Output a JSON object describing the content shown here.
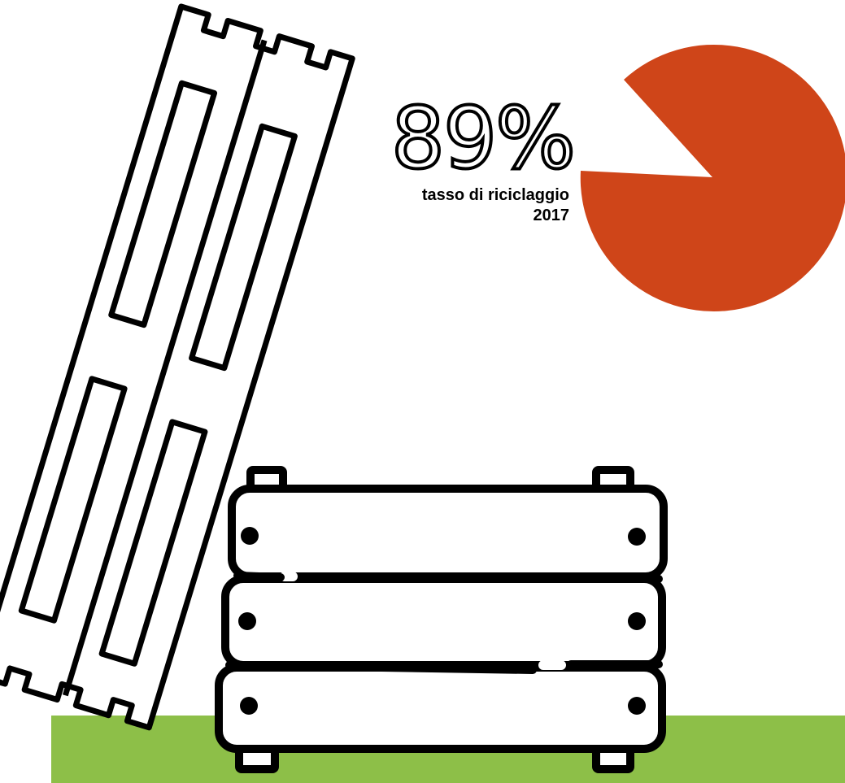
{
  "stat": {
    "percent_label": "89%",
    "caption_line1": "tasso di riciclaggio",
    "caption_line2": "2017",
    "recycling_rate_percent": 89
  },
  "colors": {
    "pie": "#CF4519",
    "ground": "#8DBF48",
    "outline": "#000000",
    "fill": "#FFFFFF"
  },
  "icons": [
    "pallet-icon",
    "wooden-crate-icon",
    "pie-chart-icon"
  ]
}
